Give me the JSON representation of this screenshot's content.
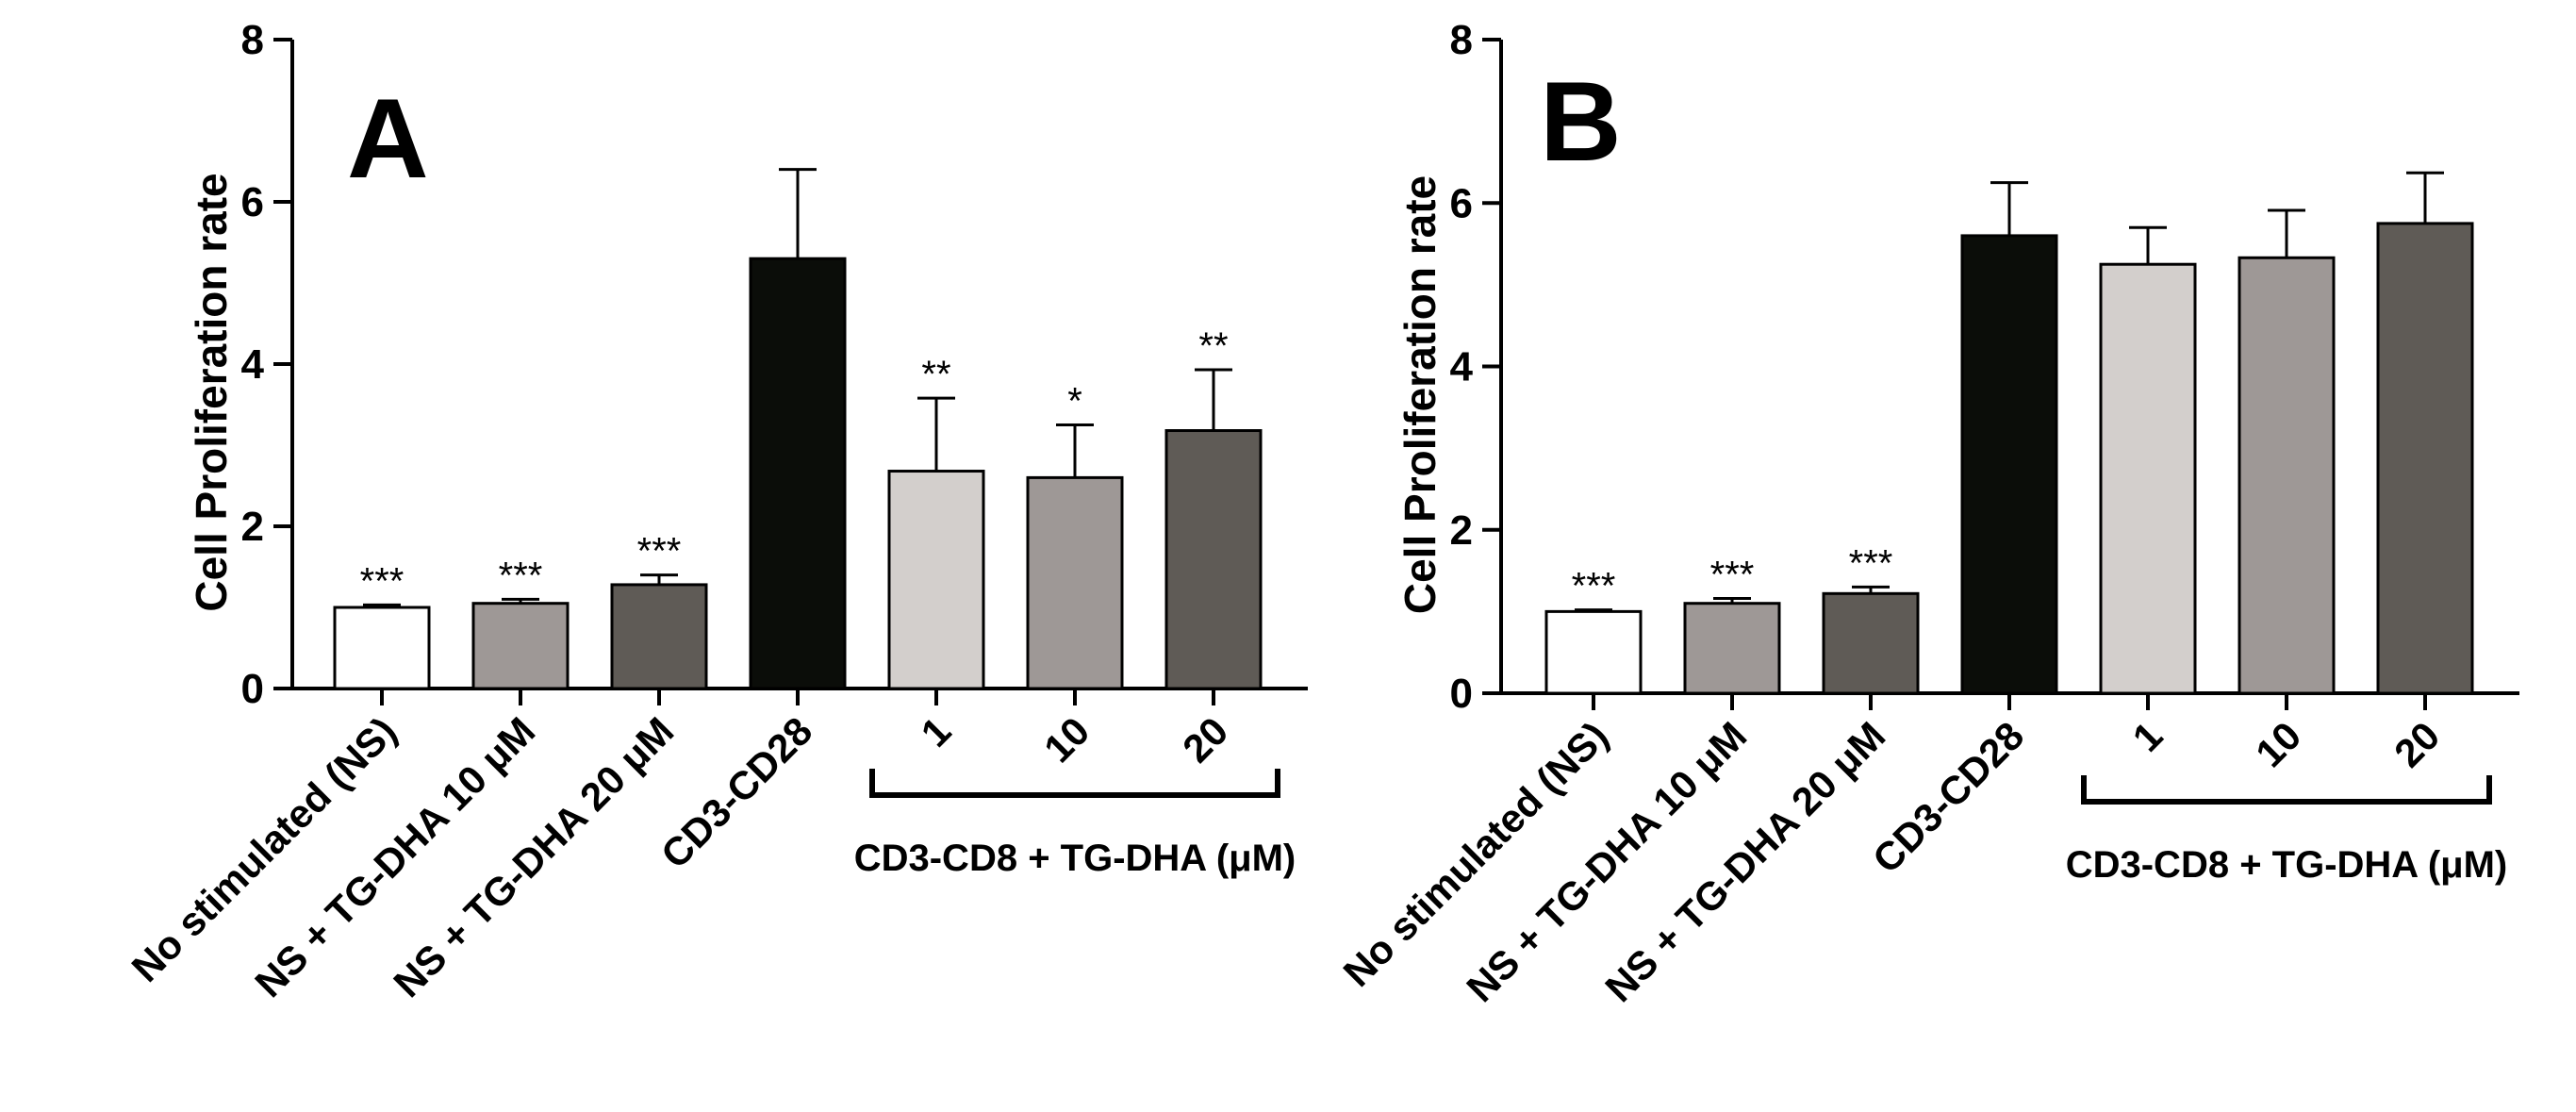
{
  "chart_data": [
    {
      "panel_label": "A",
      "type": "bar",
      "ylabel": "Cell Proliferation rate",
      "ylim": [
        0,
        8
      ],
      "yticks": [
        "0",
        "2",
        "4",
        "6",
        "8"
      ],
      "categories": [
        "No stimulated (NS)",
        "NS + TG-DHA 10 μM",
        "NS + TG-DHA 20 μM",
        "CD3-CD28",
        "1",
        "10",
        "20"
      ],
      "values": [
        1.0,
        1.05,
        1.28,
        5.3,
        2.68,
        2.6,
        3.18
      ],
      "errors": [
        0.03,
        0.05,
        0.12,
        1.1,
        0.9,
        0.65,
        0.75
      ],
      "significance": [
        "***",
        "***",
        "***",
        "",
        "**",
        "*",
        "**"
      ],
      "bar_colors": [
        "#ffffff",
        "#9e9896",
        "#5f5b56",
        "#0b0d09",
        "#d3cfcc",
        "#9e9896",
        "#5f5b56"
      ],
      "group_label": "CD3-CD8 + TG-DHA (μM)"
    },
    {
      "panel_label": "B",
      "type": "bar",
      "ylabel": "Cell Proliferation rate",
      "ylim": [
        0,
        8
      ],
      "yticks": [
        "0",
        "2",
        "4",
        "6",
        "8"
      ],
      "categories": [
        "No stimulated (NS)",
        "NS + TG-DHA 10 μM",
        "NS + TG-DHA 20 μM",
        "CD3-CD28",
        "1",
        "10",
        "20"
      ],
      "values": [
        1.0,
        1.1,
        1.22,
        5.6,
        5.25,
        5.33,
        5.75
      ],
      "errors": [
        0.02,
        0.06,
        0.08,
        0.65,
        0.45,
        0.58,
        0.62
      ],
      "significance": [
        "***",
        "***",
        "***",
        "",
        "",
        "",
        ""
      ],
      "bar_colors": [
        "#ffffff",
        "#9e9896",
        "#5f5b56",
        "#0b0d09",
        "#d3cfcc",
        "#9e9896",
        "#5f5b56"
      ],
      "group_label": "CD3-CD8 + TG-DHA (μM)"
    }
  ]
}
